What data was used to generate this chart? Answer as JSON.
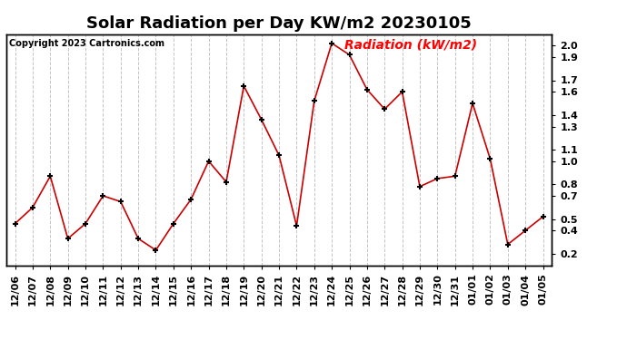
{
  "title": "Solar Radiation per Day KW/m2 20230105",
  "copyright": "Copyright 2023 Cartronics.com",
  "legend_label": "Radiation (kW/m2)",
  "dates": [
    "12/06",
    "12/07",
    "12/08",
    "12/09",
    "12/10",
    "12/11",
    "12/12",
    "12/13",
    "12/14",
    "12/15",
    "12/16",
    "12/17",
    "12/18",
    "12/19",
    "12/20",
    "12/21",
    "12/22",
    "12/23",
    "12/24",
    "12/25",
    "12/26",
    "12/27",
    "12/28",
    "12/29",
    "12/30",
    "12/31",
    "01/01",
    "01/02",
    "01/03",
    "01/04",
    "01/05"
  ],
  "values": [
    0.46,
    0.6,
    0.87,
    0.33,
    0.46,
    0.7,
    0.65,
    0.33,
    0.23,
    0.46,
    0.67,
    1.0,
    0.82,
    1.65,
    1.36,
    1.05,
    0.44,
    1.52,
    2.02,
    1.92,
    1.62,
    1.45,
    1.6,
    0.78,
    0.85,
    0.87,
    1.5,
    1.02,
    0.28,
    0.4,
    0.52
  ],
  "line_color": "#cc0000",
  "marker": "+",
  "marker_color": "black",
  "bg_color": "#ffffff",
  "plot_bg_color": "#ffffff",
  "grid_color": "#aaaaaa",
  "ylim": [
    0.1,
    2.1
  ],
  "yticks": [
    0.2,
    0.4,
    0.5,
    0.7,
    0.8,
    1.0,
    1.1,
    1.3,
    1.4,
    1.6,
    1.7,
    1.9,
    2.0
  ],
  "title_fontsize": 13,
  "copyright_fontsize": 7,
  "legend_fontsize": 10,
  "tick_fontsize": 8
}
